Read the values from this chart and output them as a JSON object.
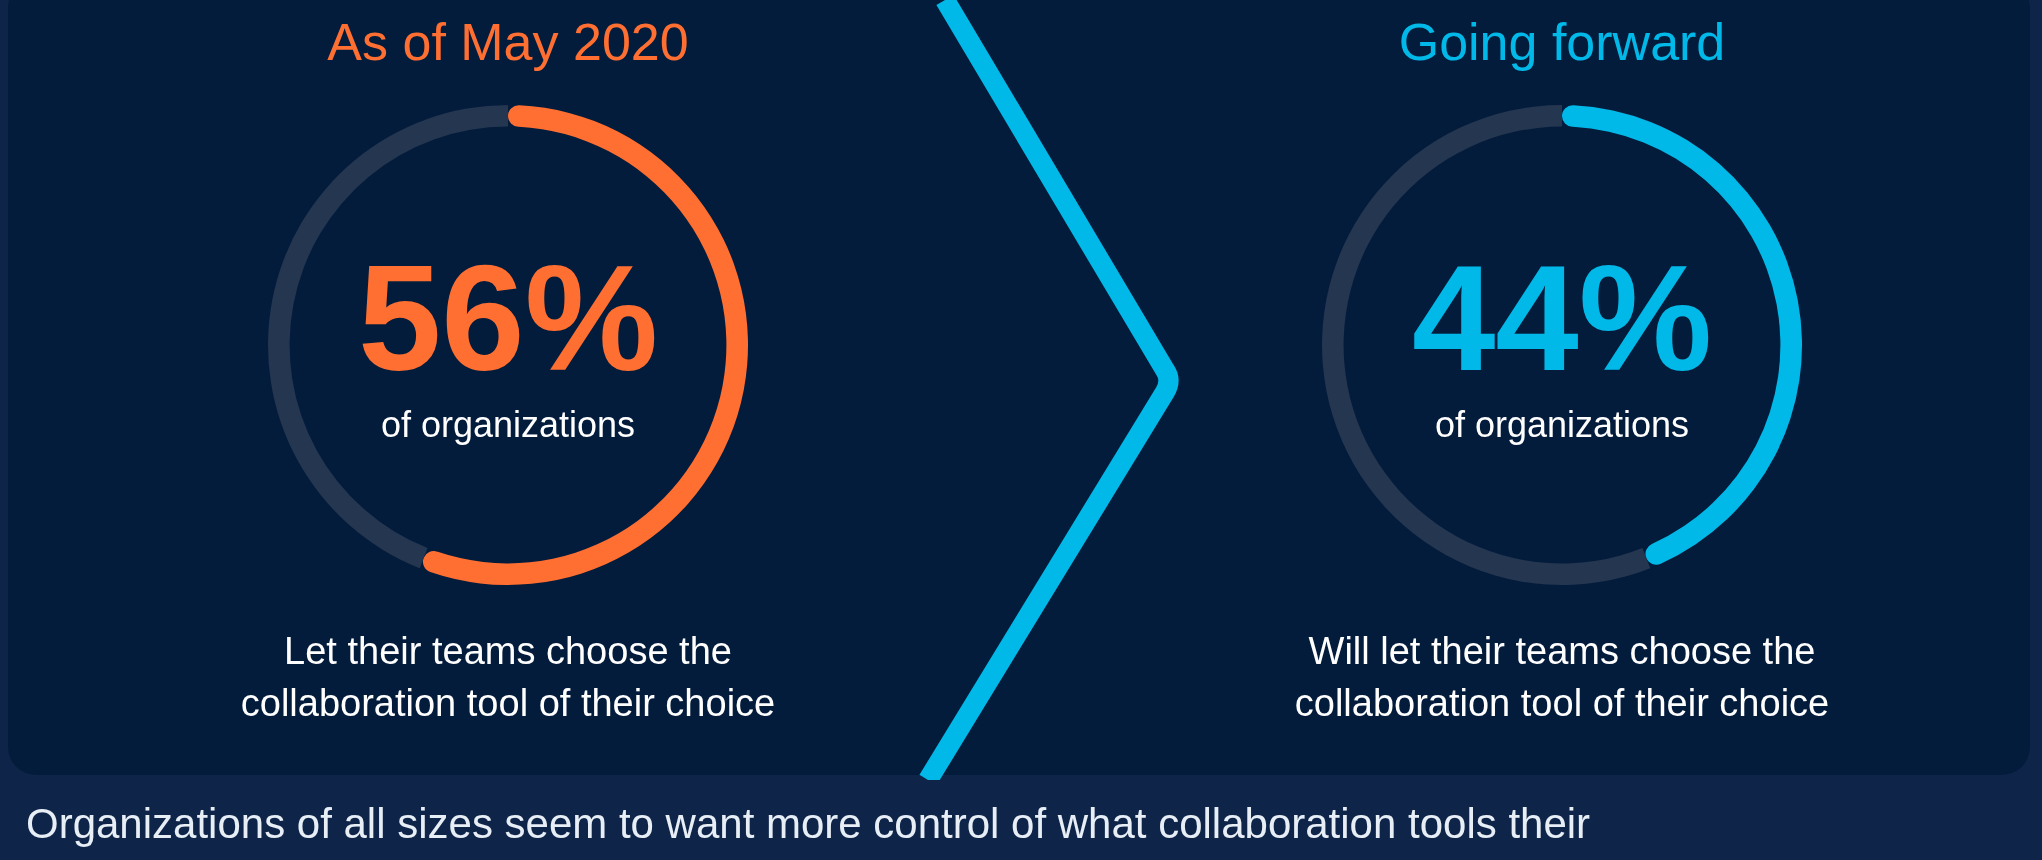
{
  "chart_data": [
    {
      "type": "donut",
      "title": "As of May 2020",
      "categories": [
        null,
        null
      ],
      "values": [
        56,
        44
      ],
      "colors": [
        "#ff6f31",
        "#243650"
      ],
      "value_labels": [
        "56%",
        null
      ],
      "annotations": [
        "of organizations",
        "Let their teams choose the collaboration tool of their choice"
      ]
    },
    {
      "type": "donut",
      "title": "Going forward",
      "categories": [
        null,
        null
      ],
      "values": [
        44,
        56
      ],
      "colors": [
        "#00b9e8",
        "#243650"
      ],
      "value_labels": [
        "44%",
        null
      ],
      "annotations": [
        "of organizations",
        "Will let their teams choose the collaboration tool of their choice"
      ]
    },
    {
      "type": "other",
      "annotations": [
        "Organizations of all sizes seem to want more control of what collaboration tools their"
      ]
    }
  ]
}
